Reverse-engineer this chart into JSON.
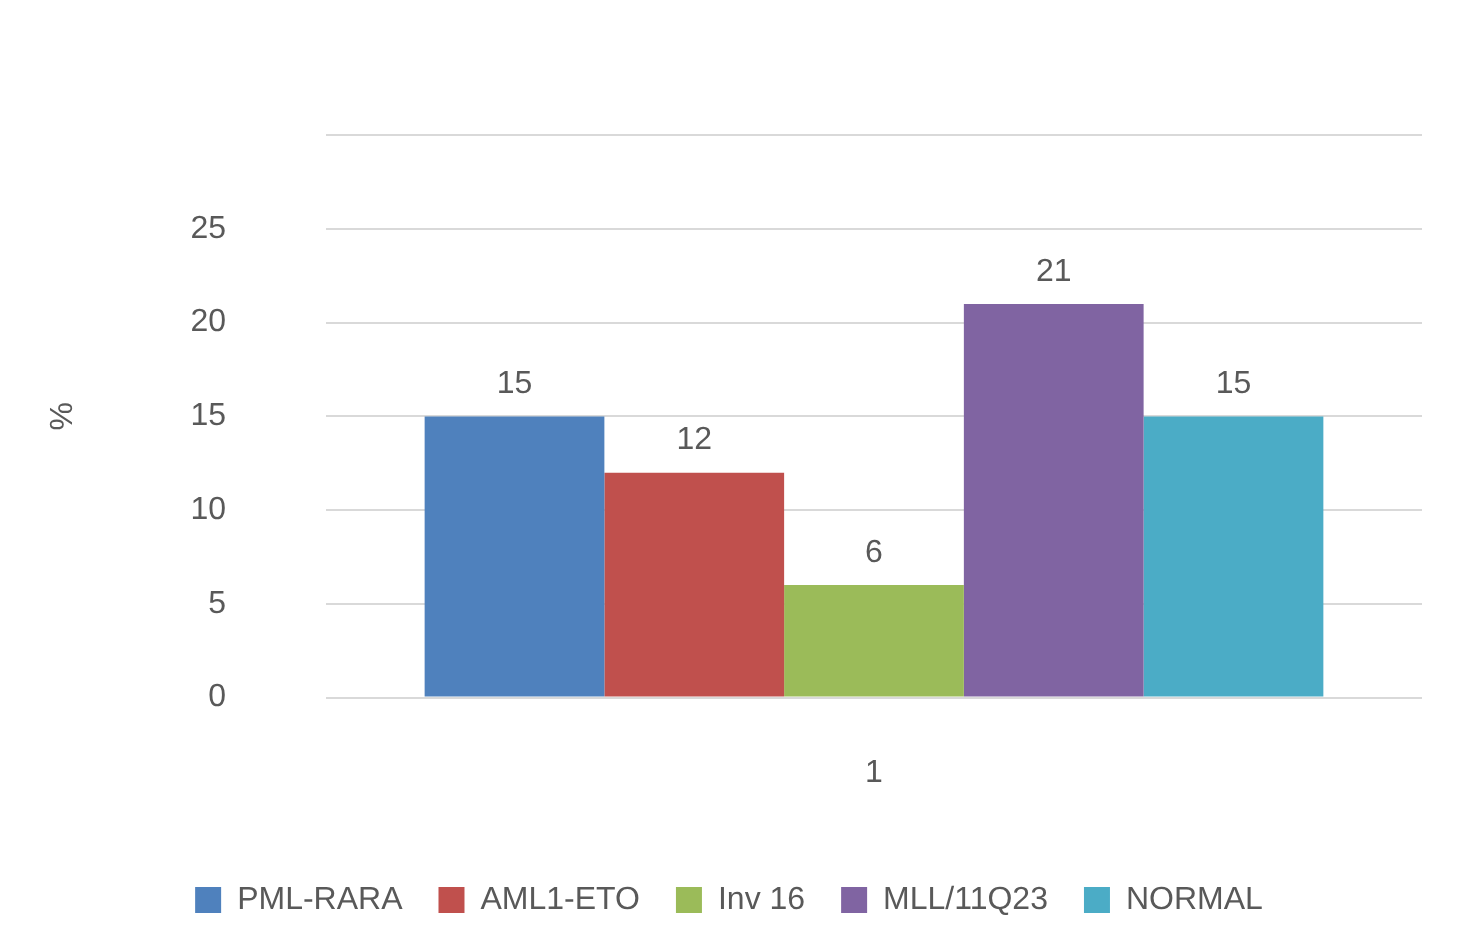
{
  "chart_data": {
    "type": "bar",
    "categories": [
      "1"
    ],
    "ylabel": "%",
    "series": [
      {
        "name": "PML-RARA",
        "color": "#4f81bd",
        "values": [
          15
        ]
      },
      {
        "name": "AML1-ETO",
        "color": "#c0504d",
        "values": [
          12
        ]
      },
      {
        "name": "Inv 16",
        "color": "#9bbb59",
        "values": [
          6
        ]
      },
      {
        "name": "MLL/11Q23",
        "color": "#8064a2",
        "values": [
          21
        ]
      },
      {
        "name": "NORMAL",
        "color": "#4bacc6",
        "values": [
          15
        ]
      }
    ],
    "ylim": [
      0,
      30
    ],
    "yticks": [
      0,
      5,
      10,
      15,
      20,
      25,
      {
        "value": 30,
        "label": null
      }
    ],
    "grid": "y",
    "legend": "bottom",
    "data_labels": true
  }
}
